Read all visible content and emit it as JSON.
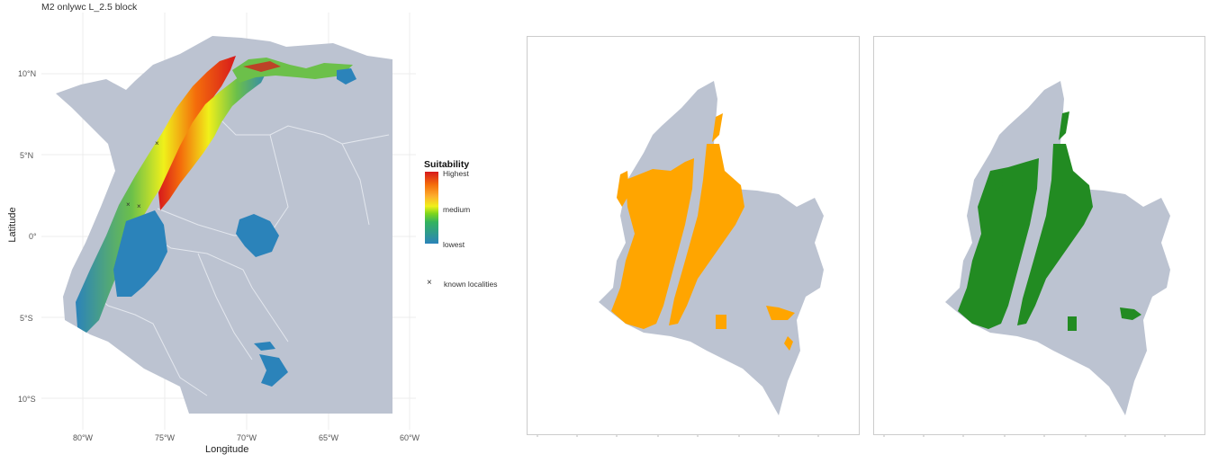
{
  "main_map": {
    "title": "M2 onlywc L_2.5 block",
    "xlabel": "Longitude",
    "ylabel": "Latitude",
    "x_ticks": [
      "80°W",
      "75°W",
      "70°W",
      "65°W",
      "60°W"
    ],
    "y_ticks": [
      "10°N",
      "5°N",
      "0°",
      "5°S",
      "10°S"
    ],
    "legend": {
      "title": "Suitability",
      "high_label": "Highest",
      "mid_label": "medium",
      "low_label": "lowest",
      "point_symbol": "×",
      "point_label": "known localities"
    }
  },
  "colors": {
    "land": "#bcc3d1",
    "border": "#e3e7ee",
    "panel_frame": "#cccccc",
    "binary_orange": "#ffa500",
    "binary_green": "#228b22",
    "suit_low": "#2b83ba",
    "suit_mid": "#f0f01a",
    "suit_high": "#d7191c"
  }
}
